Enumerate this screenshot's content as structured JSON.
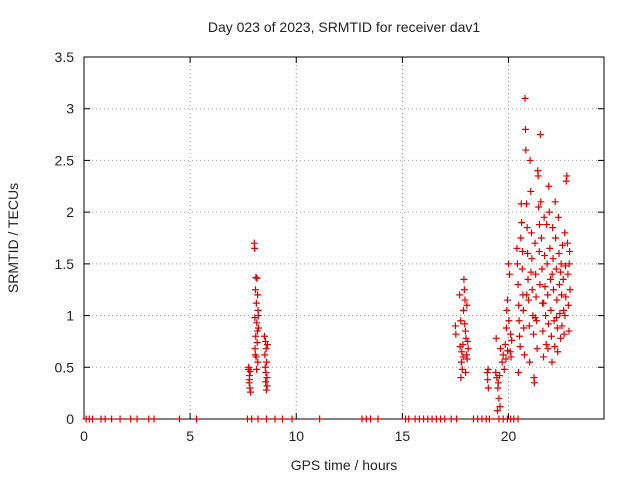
{
  "chart_data": {
    "type": "scatter",
    "title": "Day 023 of 2023, SRMTID for receiver dav1",
    "xlabel": "GPS time / hours",
    "ylabel": "SRMTID / TECUs",
    "xlim": [
      0,
      24.5
    ],
    "ylim": [
      0,
      3.5
    ],
    "x_ticks": [
      0,
      5,
      10,
      15,
      20
    ],
    "x_tick_labels": [
      "0",
      "5",
      "10",
      "15",
      "20"
    ],
    "y_ticks": [
      0,
      0.5,
      1,
      1.5,
      2,
      2.5,
      3,
      3.5
    ],
    "y_tick_labels": [
      "0",
      "0.5",
      "1",
      "1.5",
      "2",
      "2.5",
      "3",
      "3.5"
    ],
    "grid": true,
    "marker": "+",
    "series": [
      {
        "name": "SRMTID",
        "color": "#dd0000",
        "points": [
          [
            0.1,
            0
          ],
          [
            0.25,
            0
          ],
          [
            0.4,
            0
          ],
          [
            0.8,
            0
          ],
          [
            1.0,
            0
          ],
          [
            1.3,
            0
          ],
          [
            1.7,
            0
          ],
          [
            2.2,
            0
          ],
          [
            2.5,
            0
          ],
          [
            3.05,
            0
          ],
          [
            3.3,
            0
          ],
          [
            4.5,
            0
          ],
          [
            5.3,
            0
          ],
          [
            7.7,
            0
          ],
          [
            7.9,
            0
          ],
          [
            8.2,
            0
          ],
          [
            8.6,
            0
          ],
          [
            9.0,
            0
          ],
          [
            9.35,
            0
          ],
          [
            9.8,
            0
          ],
          [
            11.1,
            0
          ],
          [
            13.1,
            0
          ],
          [
            13.3,
            0
          ],
          [
            13.5,
            0
          ],
          [
            13.85,
            0
          ],
          [
            15.15,
            0
          ],
          [
            15.3,
            0
          ],
          [
            15.6,
            0
          ],
          [
            15.8,
            0
          ],
          [
            16.0,
            0
          ],
          [
            16.2,
            0
          ],
          [
            16.4,
            0
          ],
          [
            16.6,
            0
          ],
          [
            16.8,
            0
          ],
          [
            17.0,
            0
          ],
          [
            17.3,
            0
          ],
          [
            17.55,
            0
          ],
          [
            18.35,
            0
          ],
          [
            18.55,
            0
          ],
          [
            18.75,
            0
          ],
          [
            18.95,
            0
          ],
          [
            19.1,
            0
          ],
          [
            19.55,
            0
          ],
          [
            19.75,
            0
          ],
          [
            19.95,
            0
          ],
          [
            20.1,
            0
          ],
          [
            20.25,
            0
          ],
          [
            20.45,
            0
          ],
          [
            7.75,
            0.48
          ],
          [
            7.8,
            0.42
          ],
          [
            7.78,
            0.35
          ],
          [
            7.82,
            0.3
          ],
          [
            7.85,
            0.26
          ],
          [
            7.79,
            0.38
          ],
          [
            7.83,
            0.46
          ],
          [
            7.76,
            0.5
          ],
          [
            8.02,
            1.7
          ],
          [
            8.04,
            1.65
          ],
          [
            8.1,
            1.37
          ],
          [
            8.15,
            1.36
          ],
          [
            8.08,
            1.25
          ],
          [
            8.18,
            1.2
          ],
          [
            8.12,
            1.12
          ],
          [
            8.2,
            1.05
          ],
          [
            8.05,
            0.98
          ],
          [
            8.14,
            0.93
          ],
          [
            8.22,
            0.88
          ],
          [
            8.09,
            0.8
          ],
          [
            8.16,
            0.74
          ],
          [
            8.06,
            0.68
          ],
          [
            8.11,
            0.6
          ],
          [
            8.19,
            0.55
          ],
          [
            8.13,
            0.48
          ],
          [
            8.07,
            0.62
          ],
          [
            8.21,
            1.0
          ],
          [
            8.17,
            0.85
          ],
          [
            8.5,
            0.8
          ],
          [
            8.55,
            0.75
          ],
          [
            8.58,
            0.68
          ],
          [
            8.52,
            0.62
          ],
          [
            8.6,
            0.55
          ],
          [
            8.54,
            0.5
          ],
          [
            8.57,
            0.45
          ],
          [
            8.62,
            0.4
          ],
          [
            8.56,
            0.36
          ],
          [
            8.63,
            0.32
          ],
          [
            8.59,
            0.28
          ],
          [
            8.64,
            0.72
          ],
          [
            17.5,
            0.9
          ],
          [
            17.52,
            0.82
          ],
          [
            17.7,
            1.2
          ],
          [
            17.75,
            0.95
          ],
          [
            17.72,
            0.7
          ],
          [
            17.8,
            0.65
          ],
          [
            17.78,
            0.55
          ],
          [
            17.82,
            0.48
          ],
          [
            17.76,
            0.4
          ],
          [
            17.85,
            0.72
          ],
          [
            17.88,
            1.05
          ],
          [
            17.9,
            1.35
          ],
          [
            17.92,
            1.25
          ],
          [
            17.95,
            1.15
          ],
          [
            17.97,
            0.85
          ],
          [
            18.0,
            0.78
          ],
          [
            18.02,
            0.62
          ],
          [
            18.05,
            0.58
          ],
          [
            17.98,
            0.45
          ],
          [
            18.08,
            0.75
          ],
          [
            18.1,
            0.68
          ],
          [
            17.94,
            0.92
          ],
          [
            18.04,
            1.1
          ],
          [
            17.86,
            0.6
          ],
          [
            19.0,
            0.45
          ],
          [
            19.02,
            0.38
          ],
          [
            19.05,
            0.3
          ],
          [
            19.04,
            0.48
          ],
          [
            19.4,
            0.45
          ],
          [
            19.45,
            0.4
          ],
          [
            19.5,
            0.3
          ],
          [
            19.55,
            0.2
          ],
          [
            19.6,
            0.12
          ],
          [
            19.48,
            0.08
          ],
          [
            19.52,
            0.35
          ],
          [
            19.58,
            0.42
          ],
          [
            19.42,
            0.78
          ],
          [
            19.62,
            0.68
          ],
          [
            19.7,
            0.55
          ],
          [
            19.75,
            0.62
          ],
          [
            19.8,
            0.48
          ],
          [
            19.85,
            0.72
          ],
          [
            19.9,
            0.88
          ],
          [
            19.95,
            1.15
          ],
          [
            20.0,
            1.5
          ],
          [
            20.05,
            1.4
          ],
          [
            19.92,
            1.05
          ],
          [
            20.02,
            0.95
          ],
          [
            20.1,
            0.82
          ],
          [
            20.15,
            0.76
          ],
          [
            20.12,
            0.6
          ],
          [
            20.08,
            0.65
          ],
          [
            19.88,
            0.58
          ],
          [
            19.96,
            0.66
          ],
          [
            20.4,
            1.65
          ],
          [
            20.42,
            1.5
          ],
          [
            20.45,
            1.3
          ],
          [
            20.48,
            1.1
          ],
          [
            20.5,
            0.95
          ],
          [
            20.52,
            0.8
          ],
          [
            20.55,
            0.7
          ],
          [
            20.47,
            0.45
          ],
          [
            20.58,
            1.75
          ],
          [
            20.6,
            2.08
          ],
          [
            20.62,
            1.9
          ],
          [
            20.65,
            1.45
          ],
          [
            20.68,
            1.2
          ],
          [
            20.7,
            1.05
          ],
          [
            20.72,
            0.88
          ],
          [
            20.75,
            0.62
          ],
          [
            20.78,
            3.1
          ],
          [
            20.8,
            2.8
          ],
          [
            20.82,
            2.6
          ],
          [
            20.85,
            2.08
          ],
          [
            20.88,
            1.85
          ],
          [
            20.9,
            1.6
          ],
          [
            20.92,
            1.35
          ],
          [
            20.95,
            1.15
          ],
          [
            20.98,
            0.9
          ],
          [
            21.0,
            0.55
          ],
          [
            21.02,
            2.5
          ],
          [
            21.05,
            2.2
          ],
          [
            21.08,
            1.8
          ],
          [
            21.1,
            1.55
          ],
          [
            21.12,
            1.25
          ],
          [
            21.15,
            1.0
          ],
          [
            21.18,
            0.82
          ],
          [
            21.2,
            0.4
          ],
          [
            21.22,
            0.35
          ],
          [
            21.25,
            1.7
          ],
          [
            21.28,
            1.4
          ],
          [
            21.3,
            1.18
          ],
          [
            21.32,
            0.95
          ],
          [
            21.35,
            0.68
          ],
          [
            21.38,
            2.4
          ],
          [
            21.4,
            2.35
          ],
          [
            21.42,
            2.05
          ],
          [
            21.45,
            1.62
          ],
          [
            21.48,
            1.3
          ],
          [
            21.5,
            2.75
          ],
          [
            21.52,
            2.1
          ],
          [
            21.55,
            1.75
          ],
          [
            21.58,
            1.45
          ],
          [
            21.6,
            1.12
          ],
          [
            21.62,
            0.85
          ],
          [
            21.65,
            0.6
          ],
          [
            21.68,
            1.95
          ],
          [
            21.7,
            1.58
          ],
          [
            21.72,
            1.28
          ],
          [
            21.75,
            1.0
          ],
          [
            21.78,
            0.72
          ],
          [
            21.8,
            1.88
          ],
          [
            21.82,
            1.5
          ],
          [
            21.85,
            1.2
          ],
          [
            21.88,
            0.92
          ],
          [
            21.9,
            2.25
          ],
          [
            21.92,
            2.0
          ],
          [
            21.95,
            1.65
          ],
          [
            21.98,
            1.35
          ],
          [
            22.0,
            1.05
          ],
          [
            22.02,
            0.8
          ],
          [
            22.05,
            0.55
          ],
          [
            22.08,
            1.85
          ],
          [
            22.1,
            1.55
          ],
          [
            22.12,
            1.25
          ],
          [
            22.15,
            0.95
          ],
          [
            22.18,
            0.7
          ],
          [
            22.2,
            2.1
          ],
          [
            22.22,
            1.75
          ],
          [
            22.25,
            1.45
          ],
          [
            22.28,
            1.15
          ],
          [
            22.3,
            0.88
          ],
          [
            22.32,
            0.65
          ],
          [
            22.35,
            1.95
          ],
          [
            22.38,
            1.6
          ],
          [
            22.4,
            1.3
          ],
          [
            22.42,
            1.02
          ],
          [
            22.45,
            0.78
          ],
          [
            22.48,
            1.5
          ],
          [
            22.5,
            1.2
          ],
          [
            22.52,
            0.9
          ],
          [
            22.55,
            1.68
          ],
          [
            22.58,
            1.35
          ],
          [
            22.6,
            1.05
          ],
          [
            22.62,
            0.82
          ],
          [
            22.65,
            1.8
          ],
          [
            22.68,
            1.48
          ],
          [
            22.7,
            1.18
          ],
          [
            22.72,
            2.3
          ],
          [
            22.75,
            2.35
          ],
          [
            22.78,
            1.7
          ],
          [
            22.8,
            1.4
          ],
          [
            22.82,
            1.1
          ],
          [
            22.85,
            0.85
          ],
          [
            22.88,
            1.62
          ],
          [
            22.9,
            1.25
          ],
          [
            20.66,
            1.62
          ],
          [
            20.86,
            1.2
          ],
          [
            21.06,
            1.42
          ],
          [
            21.26,
            0.98
          ],
          [
            21.46,
            1.88
          ],
          [
            21.66,
            1.12
          ],
          [
            21.86,
            0.68
          ],
          [
            22.06,
            1.4
          ],
          [
            22.26,
            0.98
          ],
          [
            22.46,
            1.42
          ],
          [
            22.66,
            1.0
          ],
          [
            22.86,
            1.5
          ]
        ]
      }
    ]
  }
}
